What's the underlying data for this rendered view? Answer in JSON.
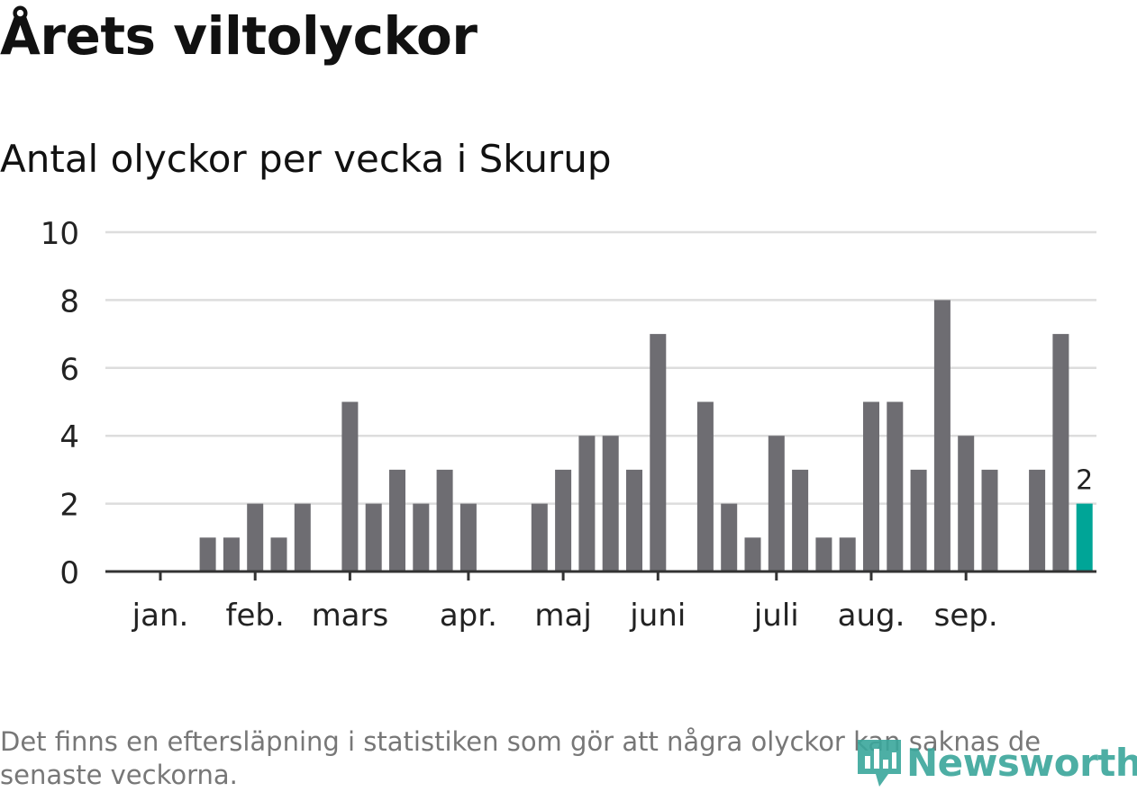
{
  "title": "Årets viltolyckor",
  "subtitle": "Antal olyckor per vecka i Skurup",
  "footnote": "Det finns en eftersläpning i statistiken som gör att några olyckor kan saknas de senaste veckorna.",
  "logo": {
    "text": "Newsworthy",
    "icon": "newsworthy-logo-icon"
  },
  "colors": {
    "bar": "#6e6d72",
    "highlight": "#00a597",
    "grid": "#dddddd",
    "axis": "#333333",
    "text": "#222222"
  },
  "chart_data": {
    "type": "bar",
    "title": "Antal olyckor per vecka i Skurup",
    "xlabel": "",
    "ylabel": "",
    "ylim": [
      0,
      10
    ],
    "yticks": [
      "0",
      "2",
      "4",
      "6",
      "8",
      "10"
    ],
    "grid": true,
    "months": [
      "jan.",
      "feb.",
      "mars",
      "apr.",
      "maj",
      "juni",
      "juli",
      "aug.",
      "sep."
    ],
    "month_start_week": [
      0,
      4,
      8,
      13,
      17,
      21,
      26,
      30,
      34
    ],
    "weeks": [
      1,
      2,
      3,
      4,
      5,
      6,
      7,
      8,
      9,
      10,
      11,
      12,
      13,
      14,
      15,
      16,
      17,
      18,
      19,
      20,
      21,
      22,
      23,
      24,
      25,
      26,
      27,
      28,
      29,
      30,
      31,
      32,
      33,
      34,
      35,
      36,
      37,
      38,
      39,
      40,
      41
    ],
    "values": [
      0,
      0,
      1,
      1,
      2,
      1,
      2,
      0,
      5,
      2,
      3,
      2,
      3,
      2,
      0,
      0,
      2,
      3,
      4,
      4,
      3,
      7,
      0,
      5,
      2,
      1,
      4,
      3,
      1,
      1,
      5,
      5,
      3,
      8,
      4,
      3,
      0,
      3,
      7,
      2,
      0
    ],
    "highlight_index": 39,
    "highlight_label": "2"
  }
}
